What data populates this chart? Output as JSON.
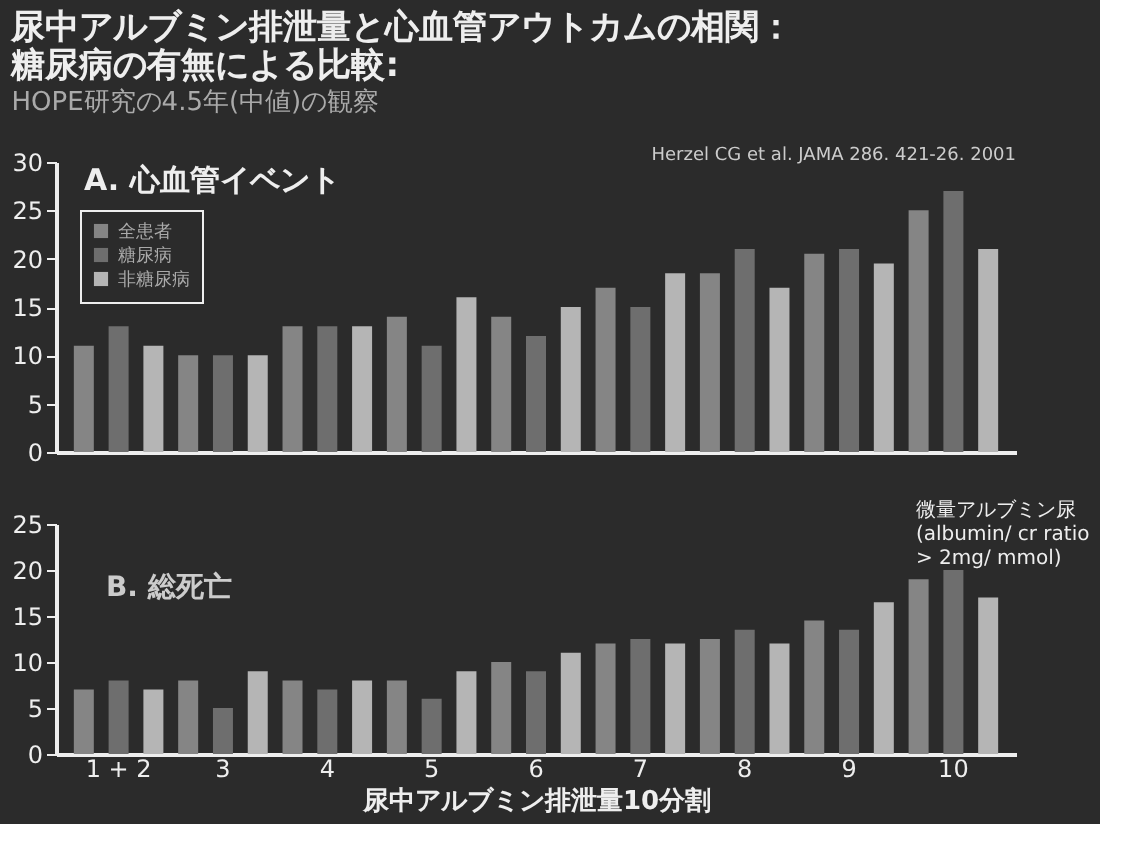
{
  "chart_data": [
    {
      "type": "bar",
      "title": [
        "尿中アルブミン排泄量と心血管アウトカムの相関：",
        "糖尿病の有無による比較:"
      ],
      "subtitle": "HOPE研究の4.5年(中値)の観察",
      "categories": [
        null,
        null,
        null,
        null,
        null,
        null,
        null,
        null,
        null
      ],
      "series": [
        {
          "name": "全患者",
          "color": "#858585",
          "values": [
            11,
            10,
            13,
            14,
            14,
            17,
            18.5,
            20.5,
            25
          ]
        },
        {
          "name": "糖尿病",
          "color": "#6e6e6e",
          "values": [
            13,
            10,
            13,
            11,
            12,
            15,
            21,
            21,
            27
          ]
        },
        {
          "name": "非糖尿病",
          "color": "#b5b5b5",
          "values": [
            11,
            10,
            13,
            16,
            15,
            18.5,
            17,
            19.5,
            21
          ]
        }
      ],
      "ylim": [
        0,
        30
      ],
      "yticks": [
        0,
        5,
        10,
        15,
        20,
        25,
        30
      ],
      "grid": false,
      "legend": "top left",
      "tick_labels": "y",
      "annotations": [
        "A. 心血管イベント",
        "Herzel CG et al. JAMA 286. 421-26. 2001"
      ]
    },
    {
      "type": "bar",
      "xlabel": "尿中アルブミン排泄量10分割",
      "categories": [
        "1 + 2",
        "3",
        "4",
        "5",
        "6",
        "7",
        "8",
        "9",
        "10"
      ],
      "series": [
        {
          "name": "全患者",
          "color": "#858585",
          "values": [
            7,
            8,
            8,
            8,
            10,
            12,
            12.5,
            14.5,
            19
          ]
        },
        {
          "name": "糖尿病",
          "color": "#6e6e6e",
          "values": [
            8,
            5,
            7,
            6,
            9,
            12.5,
            13.5,
            13.5,
            20
          ]
        },
        {
          "name": "非糖尿病",
          "color": "#b5b5b5",
          "values": [
            7,
            9,
            8,
            9,
            11,
            12,
            12,
            16.5,
            17
          ]
        }
      ],
      "ylim": [
        0,
        25
      ],
      "yticks": [
        0,
        5,
        10,
        15,
        20,
        25
      ],
      "grid": false,
      "annotations": [
        "B. 総死亡",
        "微量アルブミン尿\n(albumin/ cr ratio\n> 2mg/ mmol)"
      ]
    }
  ]
}
